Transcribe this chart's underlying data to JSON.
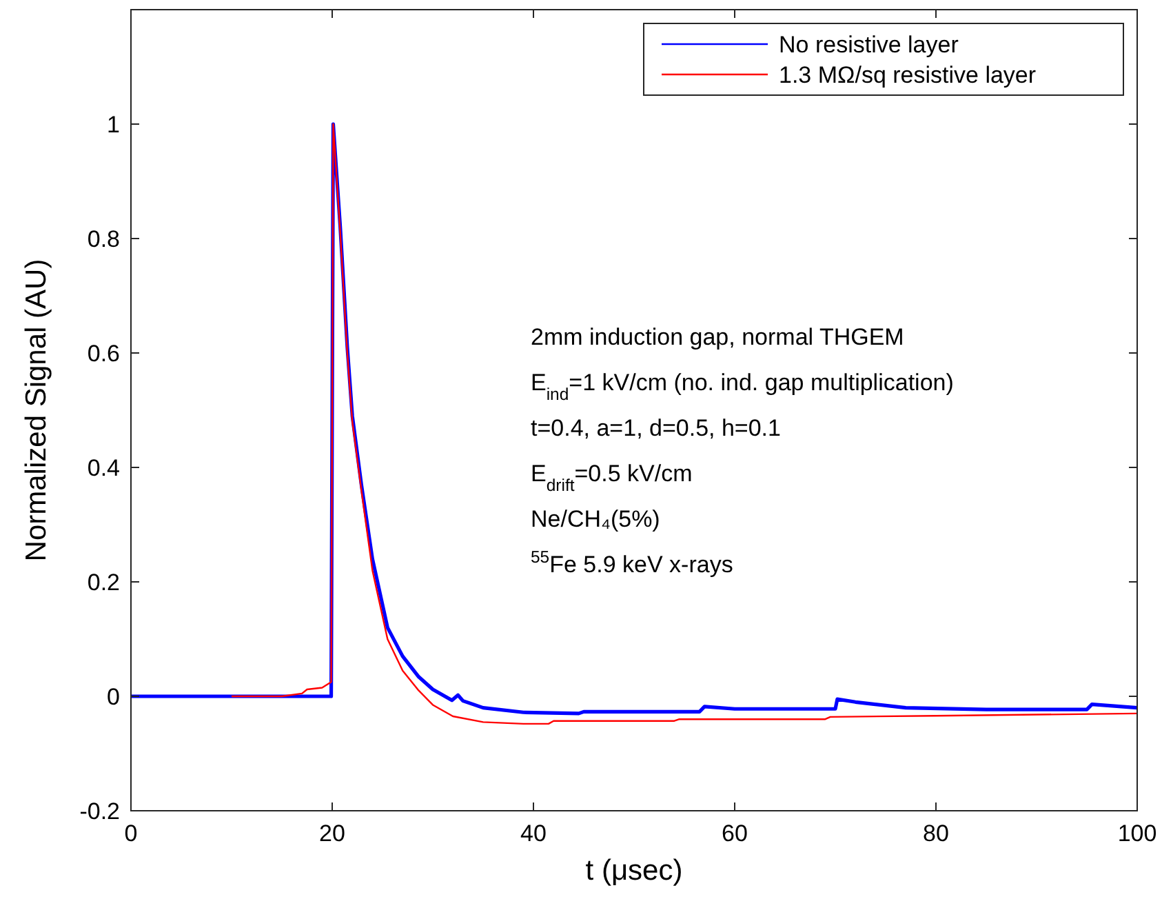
{
  "chart_data": {
    "type": "line",
    "xlabel": "t (μsec)",
    "ylabel": "Normalized Signal (AU)",
    "xlim": [
      0,
      100
    ],
    "ylim": [
      -0.2,
      1.2
    ],
    "xticks": [
      0,
      20,
      40,
      60,
      80,
      100
    ],
    "yticks": [
      -0.2,
      0,
      0.2,
      0.4,
      0.6,
      0.8,
      1
    ],
    "legend": "top right",
    "grid": false,
    "line_style": "solid",
    "annotations": [
      "2mm induction gap, normal THGEM",
      "E$_{ind}$=1 kV/cm (no. ind. gap multiplication)",
      "t=0.4, a=1, d=0.5, h=0.1",
      "E$_{drift}$=0.5 kV/cm",
      "Ne/CH₄(5%)",
      "$^{55}$Fe 5.9 keV x-rays"
    ],
    "series": [
      {
        "name": "No resistive layer",
        "color": "#0000ff",
        "x": [
          0,
          5,
          10,
          15,
          19.9,
          20,
          20.1,
          20.8,
          21.5,
          22,
          22.9,
          24,
          25.5,
          27,
          28.6,
          30,
          31.9,
          32.5,
          33,
          35,
          39,
          44.5,
          45,
          56.5,
          57,
          60,
          70,
          70.2,
          72,
          77,
          85,
          95,
          95.5,
          100
        ],
        "values": [
          0,
          0,
          0,
          0,
          0,
          0.5,
          1,
          0.82,
          0.61,
          0.49,
          0.37,
          0.24,
          0.12,
          0.07,
          0.034,
          0.012,
          -0.007,
          0.002,
          -0.008,
          -0.02,
          -0.028,
          -0.03,
          -0.027,
          -0.027,
          -0.018,
          -0.022,
          -0.022,
          -0.005,
          -0.01,
          -0.02,
          -0.023,
          -0.023,
          -0.014,
          -0.02
        ]
      },
      {
        "name": "1.3 MΩ/sq resistive layer",
        "color": "#ff0000",
        "x": [
          10,
          15,
          17,
          17.5,
          19,
          19.9,
          20,
          20.1,
          20.8,
          21.5,
          22,
          22.9,
          24,
          25.5,
          27,
          28.6,
          30,
          32,
          35,
          39,
          41.5,
          42,
          54,
          54.5,
          69,
          69.5,
          80,
          90,
          100
        ],
        "values": [
          0,
          0,
          0.005,
          0.012,
          0.015,
          0.025,
          0.5,
          1,
          0.81,
          0.6,
          0.48,
          0.36,
          0.22,
          0.1,
          0.045,
          0.01,
          -0.015,
          -0.035,
          -0.045,
          -0.048,
          -0.048,
          -0.043,
          -0.043,
          -0.04,
          -0.04,
          -0.036,
          -0.034,
          -0.032,
          -0.03
        ]
      }
    ]
  }
}
